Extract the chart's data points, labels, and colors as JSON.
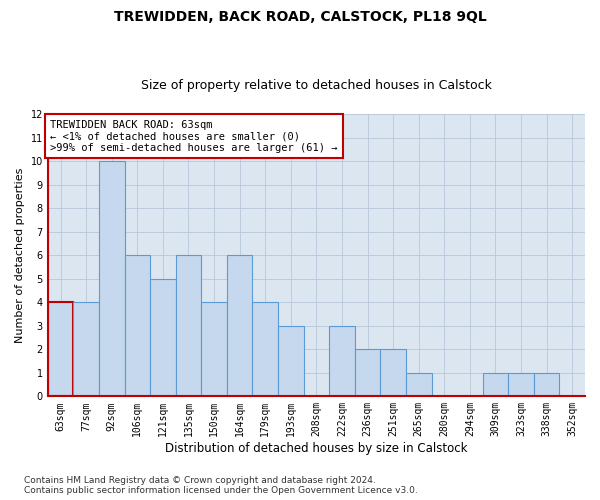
{
  "title": "TREWIDDEN, BACK ROAD, CALSTOCK, PL18 9QL",
  "subtitle": "Size of property relative to detached houses in Calstock",
  "xlabel": "Distribution of detached houses by size in Calstock",
  "ylabel": "Number of detached properties",
  "categories": [
    "63sqm",
    "77sqm",
    "92sqm",
    "106sqm",
    "121sqm",
    "135sqm",
    "150sqm",
    "164sqm",
    "179sqm",
    "193sqm",
    "208sqm",
    "222sqm",
    "236sqm",
    "251sqm",
    "265sqm",
    "280sqm",
    "294sqm",
    "309sqm",
    "323sqm",
    "338sqm",
    "352sqm"
  ],
  "values": [
    4,
    4,
    10,
    6,
    5,
    6,
    4,
    6,
    4,
    3,
    0,
    3,
    2,
    2,
    1,
    0,
    0,
    1,
    1,
    1,
    0
  ],
  "bar_color": "#c5d8ed",
  "bar_edge_color": "#5b9bd5",
  "highlight_index": 0,
  "highlight_edge_color": "#c00000",
  "ylim": [
    0,
    12
  ],
  "yticks": [
    0,
    1,
    2,
    3,
    4,
    5,
    6,
    7,
    8,
    9,
    10,
    11,
    12
  ],
  "grid_color": "#b8c8d8",
  "background_color": "#dce6f1",
  "annotation_line1": "TREWIDDEN BACK ROAD: 63sqm",
  "annotation_line2": "← <1% of detached houses are smaller (0)",
  "annotation_line3": ">99% of semi-detached houses are larger (61) →",
  "annotation_box_edge": "#c00000",
  "footer_line1": "Contains HM Land Registry data © Crown copyright and database right 2024.",
  "footer_line2": "Contains public sector information licensed under the Open Government Licence v3.0.",
  "title_fontsize": 10,
  "subtitle_fontsize": 9,
  "xlabel_fontsize": 8.5,
  "ylabel_fontsize": 8,
  "tick_fontsize": 7,
  "annotation_fontsize": 7.5,
  "footer_fontsize": 6.5
}
